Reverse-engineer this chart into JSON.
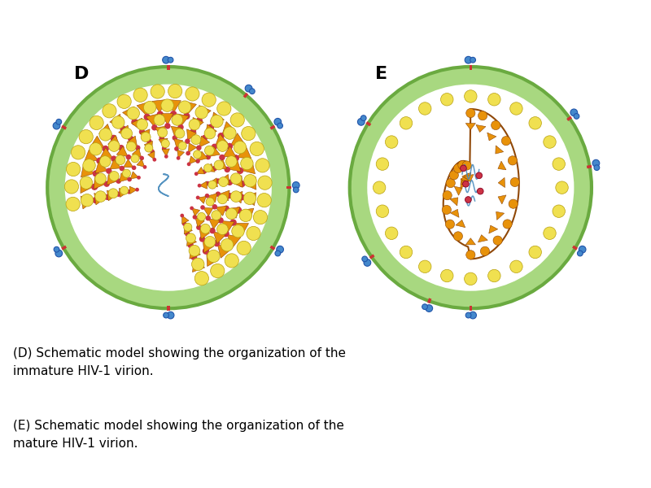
{
  "bg_color": "#ffffff",
  "membrane_green": "#a8d880",
  "membrane_edge": "#6aaa40",
  "yellow_fill": "#f0e050",
  "yellow_edge": "#b8a010",
  "orange_fill": "#e8920a",
  "orange_edge": "#904808",
  "red_dot": "#cc3344",
  "blue_fill": "#4488cc",
  "blue_edge": "#2255aa",
  "red_bar": "#cc3333",
  "rna_blue": "#4488bb",
  "caption_D": "(D) Schematic model showing the organization of the\nimmature HIV-1 virion.",
  "caption_E": "(E) Schematic model showing the organization of the\nmature HIV-1 virion."
}
